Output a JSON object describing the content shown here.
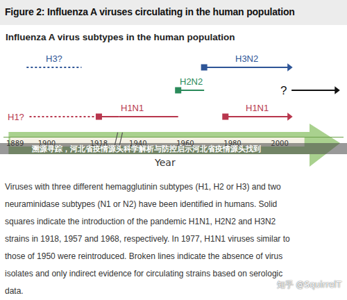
{
  "figure": {
    "title": "Figure 2: Influenza A viruses circulating in the human population",
    "caption_lines": [
      "Viruses with three different hemagglutinin subtypes (H1, H2 or H3) and two",
      "neuraminidase subtypes (N1 or N2) have been identified in humans. Solid",
      "squares indicate the introduction of the pandemic H1N1, H2N2 and H3N2",
      "strains in 1918, 1957 and 1968, respectively. In 1977, H1N1 viruses similar to",
      "those of 1950 were reintroduced. Broken lines indicate the absence of virus",
      "isolates and only indirect evidence for circulating strains based on serologic",
      "data."
    ]
  },
  "chart_data": {
    "type": "timeline",
    "title": "Influenza A virus subtypes in the human population",
    "x_label": "Year",
    "grid": false,
    "axis_segments": [
      {
        "xlim": [
          1885,
          1925
        ],
        "xticks": [
          1889,
          1900,
          1918
        ]
      },
      {
        "xlim": [
          1932,
          2027
        ],
        "xticks": [
          1940,
          1960,
          1980,
          2000
        ]
      }
    ],
    "series": [
      {
        "name": "H3?",
        "color": "#2e5597",
        "line_style": "dotted",
        "marker": "none",
        "x": [
          1893,
          1912
        ]
      },
      {
        "name": "H3N2",
        "color": "#2e5597",
        "line_style": "arrow",
        "marker": "square",
        "x": [
          1968,
          2004
        ]
      },
      {
        "name": "H2N2",
        "color": "#2a8a5a",
        "line_style": "solid",
        "marker": "square",
        "x": [
          1957,
          1968
        ]
      },
      {
        "name": "?",
        "color": "#111111",
        "line_style": "arrow",
        "marker": "none",
        "x": [
          2005,
          2024
        ]
      },
      {
        "name": "H1?",
        "color": "#b8364d",
        "line_style": "dotted",
        "marker": "none",
        "x": [
          1894,
          1918
        ]
      },
      {
        "name": "H1N1",
        "color": "#b8364d",
        "line_style": "solid",
        "marker": "square",
        "x": [
          1918,
          1957
        ]
      },
      {
        "name": "H1N1",
        "color": "#b8364d",
        "line_style": "arrow",
        "marker": "square",
        "x": [
          1977,
          2004
        ]
      }
    ]
  },
  "watermarks": {
    "banner": "溯源寻踪，河北省疫情源头科学解析与防控启示河北省疫情源头找到",
    "credit": "知乎 @SquirrelT"
  }
}
